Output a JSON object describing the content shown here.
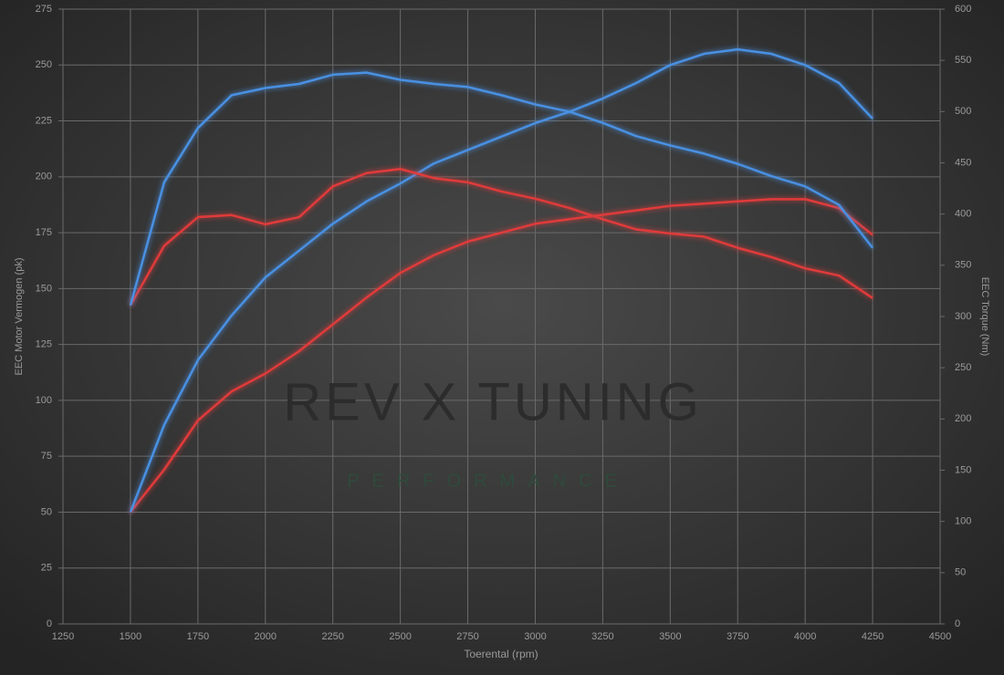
{
  "chart_data": {
    "type": "line",
    "xlabel": "Toerental (rpm)",
    "ylabel": "EEC Motor Vermogen (pk)",
    "y2label": "EEC Torque (Nm)",
    "watermark": "REV X TUNING",
    "watermark_sub": "PERFORMANCE",
    "x": [
      1500,
      1625,
      1750,
      1875,
      2000,
      2125,
      2250,
      2375,
      2500,
      2625,
      2750,
      2875,
      3000,
      3125,
      3250,
      3375,
      3500,
      3625,
      3750,
      3875,
      4000,
      4125,
      4250
    ],
    "series": [
      {
        "color": "#e03a3a",
        "axis": "y",
        "values": [
          50,
          69,
          91,
          104,
          112,
          122,
          134,
          146,
          157,
          165,
          171,
          175,
          179,
          181,
          183,
          185,
          187,
          188,
          189,
          190,
          190,
          186,
          174
        ]
      },
      {
        "color": "#4a90e2",
        "axis": "y",
        "values": [
          50,
          89,
          118,
          138,
          155,
          167,
          179,
          189,
          197,
          206,
          212,
          218,
          224,
          229,
          235,
          242,
          250,
          255,
          257,
          255,
          250,
          242,
          226
        ]
      },
      {
        "color": "#e03a3a",
        "axis": "y2",
        "values": [
          311,
          369,
          397,
          399,
          390,
          397,
          427,
          440,
          444,
          435,
          431,
          422,
          415,
          406,
          395,
          385,
          381,
          378,
          367,
          358,
          347,
          340,
          318
        ]
      },
      {
        "color": "#4a90e2",
        "axis": "y2",
        "values": [
          311,
          431,
          484,
          516,
          523,
          527,
          536,
          538,
          531,
          527,
          524,
          516,
          507,
          500,
          489,
          476,
          467,
          459,
          449,
          437,
          427,
          409,
          367
        ]
      }
    ],
    "xlim": [
      1250,
      4500
    ],
    "xticks": [
      1250,
      1500,
      1750,
      2000,
      2250,
      2500,
      2750,
      3000,
      3250,
      3500,
      3750,
      4000,
      4250,
      4500
    ],
    "ylim": [
      0,
      275
    ],
    "yticks": [
      0,
      25,
      50,
      75,
      100,
      125,
      150,
      175,
      200,
      225,
      250,
      275
    ],
    "y2lim": [
      0,
      600
    ],
    "y2ticks": [
      0,
      50,
      100,
      150,
      200,
      250,
      300,
      350,
      400,
      450,
      500,
      550,
      600
    ],
    "grid": true
  }
}
